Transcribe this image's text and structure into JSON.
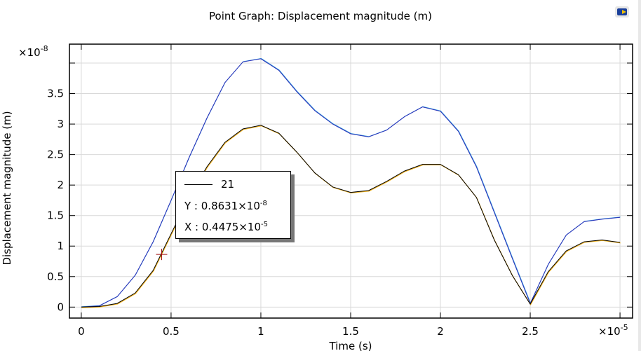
{
  "chart_data": {
    "type": "line",
    "title": "Point Graph: Displacement magnitude (m)",
    "xlabel": "Time (s)",
    "ylabel": "Displacement magnitude (m)",
    "x_multiplier": "×10",
    "x_multiplier_exp": "-5",
    "y_multiplier": "×10",
    "y_multiplier_exp": "-8",
    "xlim": [
      -0.066,
      3.07
    ],
    "ylim": [
      -0.18,
      4.31
    ],
    "xticks": [
      0,
      0.5,
      1,
      1.5,
      2,
      2.5
    ],
    "xtick_labels": [
      "0",
      "0.5",
      "1",
      "1.5",
      "2",
      "2.5"
    ],
    "yticks": [
      0,
      0.5,
      1,
      1.5,
      2,
      2.5,
      3,
      3.5
    ],
    "ytick_labels": [
      "0",
      "0.5",
      "1",
      "1.5",
      "2",
      "2.5",
      "3",
      "3.5"
    ],
    "grid": true,
    "x": [
      0,
      0.1,
      0.2,
      0.3,
      0.4,
      0.5,
      0.6,
      0.7,
      0.8,
      0.9,
      1.0,
      1.1,
      1.2,
      1.3,
      1.4,
      1.5,
      1.6,
      1.7,
      1.8,
      1.9,
      2.0,
      2.1,
      2.2,
      2.3,
      2.4,
      2.5,
      2.6,
      2.7,
      2.8,
      2.9,
      3.0
    ],
    "series": [
      {
        "name": "blue",
        "color": "#2a2fb8",
        "values": [
          0,
          0.02,
          0.17,
          0.52,
          1.07,
          1.75,
          2.45,
          3.1,
          3.68,
          4.02,
          4.07,
          3.88,
          3.53,
          3.22,
          3.0,
          2.84,
          2.79,
          2.9,
          3.12,
          3.28,
          3.21,
          2.88,
          2.3,
          1.55,
          0.8,
          0.06,
          0.7,
          1.18,
          1.4,
          1.44,
          1.47
        ]
      },
      {
        "name": "21",
        "color": "#000000",
        "values": [
          0,
          0.01,
          0.06,
          0.23,
          0.6,
          1.2,
          1.8,
          2.3,
          2.7,
          2.92,
          2.98,
          2.85,
          2.54,
          2.2,
          1.97,
          1.88,
          1.91,
          2.06,
          2.23,
          2.34,
          2.34,
          2.17,
          1.8,
          1.1,
          0.52,
          0.05,
          0.58,
          0.92,
          1.07,
          1.1,
          1.06
        ]
      }
    ],
    "marker": {
      "x": 0.4475,
      "y": 0.8631,
      "color": "#a01010"
    },
    "tooltip": {
      "series_label": "21",
      "y_label": "Y : 0.8631×10",
      "y_exp": "-8",
      "x_label": "X : 0.4475×10",
      "x_exp": "-5"
    }
  }
}
